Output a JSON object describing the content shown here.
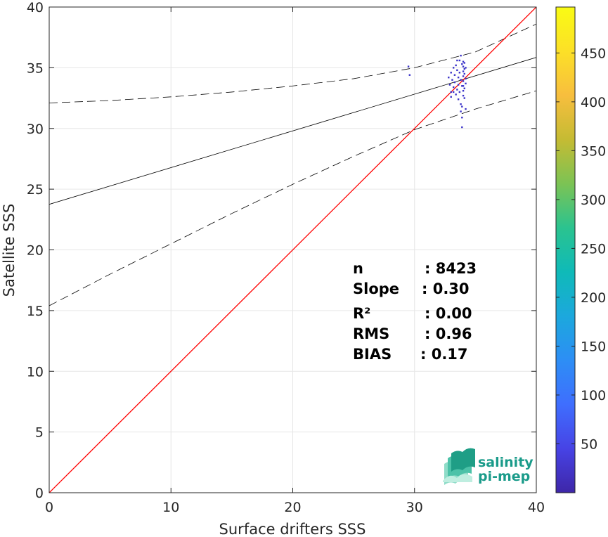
{
  "chart_data": {
    "type": "scatter",
    "xlabel": "Surface drifters SSS",
    "ylabel": "Satellite SSS",
    "xlim": [
      0,
      40
    ],
    "ylim": [
      0,
      40
    ],
    "xticks": [
      "0",
      "10",
      "20",
      "30",
      "40"
    ],
    "yticks": [
      "0",
      "5",
      "10",
      "15",
      "20",
      "25",
      "30",
      "35",
      "40"
    ],
    "grid": true,
    "identity_line": {
      "x": [
        0,
        40
      ],
      "y": [
        0,
        40
      ],
      "color": "#ff0000"
    },
    "fit_line": {
      "x": [
        0,
        40
      ],
      "y": [
        23.75,
        35.85
      ],
      "color": "#000000"
    },
    "confidence_upper": {
      "x": [
        0,
        5,
        10,
        15,
        20,
        25,
        30,
        35,
        40
      ],
      "y": [
        32.1,
        32.3,
        32.6,
        33.0,
        33.5,
        34.1,
        35.0,
        36.3,
        38.6
      ]
    },
    "confidence_lower": {
      "x": [
        0,
        5,
        10,
        15,
        20,
        25,
        30,
        35,
        40
      ],
      "y": [
        15.4,
        18.0,
        20.5,
        23.0,
        25.4,
        27.7,
        29.9,
        31.6,
        33.1
      ]
    },
    "density_points": [
      {
        "x": 29.5,
        "y": 35.1
      },
      {
        "x": 29.6,
        "y": 34.4
      },
      {
        "x": 32.8,
        "y": 34.2
      },
      {
        "x": 32.9,
        "y": 33.6
      },
      {
        "x": 33.0,
        "y": 34.6
      },
      {
        "x": 33.0,
        "y": 33.0
      },
      {
        "x": 33.1,
        "y": 34.0
      },
      {
        "x": 33.2,
        "y": 35.0
      },
      {
        "x": 33.2,
        "y": 33.4
      },
      {
        "x": 33.3,
        "y": 34.4
      },
      {
        "x": 33.3,
        "y": 33.8
      },
      {
        "x": 33.4,
        "y": 35.2
      },
      {
        "x": 33.4,
        "y": 32.8
      },
      {
        "x": 33.5,
        "y": 34.8
      },
      {
        "x": 33.5,
        "y": 33.2
      },
      {
        "x": 33.6,
        "y": 34.2
      },
      {
        "x": 33.6,
        "y": 33.6
      },
      {
        "x": 33.6,
        "y": 32.4
      },
      {
        "x": 33.7,
        "y": 35.6
      },
      {
        "x": 33.7,
        "y": 34.6
      },
      {
        "x": 33.7,
        "y": 33.0
      },
      {
        "x": 33.8,
        "y": 36.0
      },
      {
        "x": 33.8,
        "y": 34.0
      },
      {
        "x": 33.8,
        "y": 32.0
      },
      {
        "x": 33.8,
        "y": 31.4
      },
      {
        "x": 33.9,
        "y": 30.1
      },
      {
        "x": 33.9,
        "y": 30.9
      },
      {
        "x": 33.9,
        "y": 35.3
      },
      {
        "x": 33.9,
        "y": 33.5
      },
      {
        "x": 33.9,
        "y": 31.8
      },
      {
        "x": 34.0,
        "y": 35.5
      },
      {
        "x": 34.0,
        "y": 35.1
      },
      {
        "x": 34.0,
        "y": 34.7
      },
      {
        "x": 34.0,
        "y": 34.3
      },
      {
        "x": 34.0,
        "y": 33.9
      },
      {
        "x": 34.0,
        "y": 33.5
      },
      {
        "x": 34.0,
        "y": 33.1
      },
      {
        "x": 34.0,
        "y": 32.7
      },
      {
        "x": 34.1,
        "y": 35.4
      },
      {
        "x": 34.1,
        "y": 34.9
      },
      {
        "x": 34.1,
        "y": 34.5
      },
      {
        "x": 34.1,
        "y": 33.3
      },
      {
        "x": 34.1,
        "y": 32.5
      },
      {
        "x": 34.2,
        "y": 34.1
      },
      {
        "x": 34.2,
        "y": 33.7
      },
      {
        "x": 34.2,
        "y": 31.6
      },
      {
        "x": 33.2,
        "y": 33.0
      },
      {
        "x": 33.0,
        "y": 32.6
      },
      {
        "x": 33.5,
        "y": 35.6
      },
      {
        "x": 34.2,
        "y": 35.0
      }
    ],
    "point_color": "#3b33c9",
    "colorbar": {
      "ticks": [
        "50",
        "100",
        "150",
        "200",
        "250",
        "300",
        "350",
        "400",
        "450"
      ],
      "range": [
        0,
        497
      ],
      "colors": [
        "#3e26a8",
        "#4743e5",
        "#3f6efe",
        "#2d8ef5",
        "#1ca8dd",
        "#0fbab8",
        "#2bc38f",
        "#7cc354",
        "#c5bb33",
        "#f7be3e",
        "#fce027",
        "#f9fb14"
      ]
    },
    "stats": [
      {
        "label": "n",
        "sep": ":",
        "value": "8423"
      },
      {
        "label": "Slope",
        "sep": ":",
        "value": "0.30"
      },
      {
        "label": "R²",
        "sep": ":",
        "value": "0.00"
      },
      {
        "label": "RMS",
        "sep": ":",
        "value": "0.96"
      },
      {
        "label": "BIAS",
        "sep": ":",
        "value": "0.17"
      }
    ]
  },
  "logo": {
    "line1": "salinity",
    "line2": "pi-mep"
  }
}
